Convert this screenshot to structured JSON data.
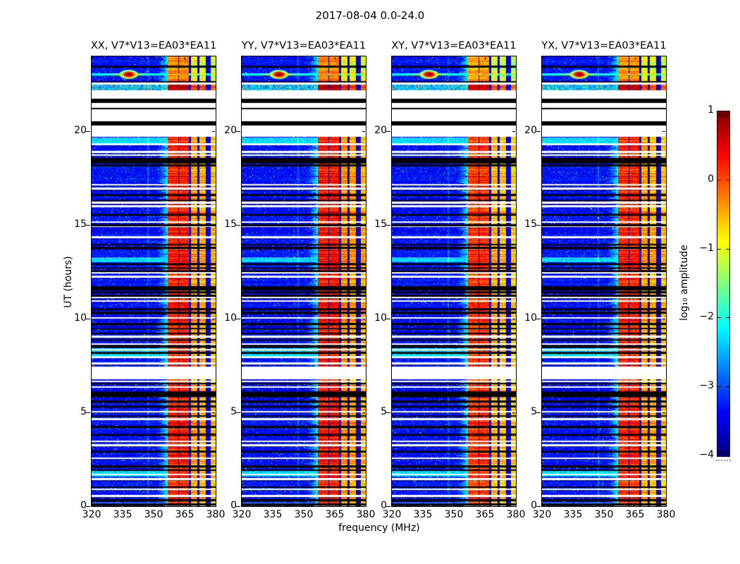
{
  "figure": {
    "title": "2017-08-04 0.0-24.0"
  },
  "chart_data": {
    "type": "heatmap",
    "title": "2017-08-04 0.0-24.0",
    "xlabel": "frequency (MHz)",
    "ylabel": "UT (hours)",
    "x_range": [
      320,
      380
    ],
    "y_range": [
      0,
      24
    ],
    "x_ticks": [
      320,
      335,
      350,
      365,
      380
    ],
    "y_ticks": [
      0,
      5,
      10,
      15,
      20
    ],
    "grid": false,
    "panels": [
      {
        "title": "XX, V7*V13=EA03*EA11",
        "pol": "XX",
        "band_bias": 0.0,
        "seed": 101
      },
      {
        "title": "YY, V7*V13=EA03*EA11",
        "pol": "YY",
        "band_bias": 0.06,
        "seed": 211
      },
      {
        "title": "XY, V7*V13=EA03*EA11",
        "pol": "XY",
        "band_bias": -0.12,
        "seed": 317
      },
      {
        "title": "YX, V7*V13=EA03*EA11",
        "pol": "YX",
        "band_bias": -0.03,
        "seed": 431
      }
    ],
    "colorbar": {
      "label": "log₁₀ amplitude",
      "min": -4,
      "max": 1,
      "tick_labels": [
        "1",
        "0",
        "−1",
        "−2",
        "−3",
        "−4"
      ],
      "tick_values": [
        1,
        0,
        -1,
        -2,
        -3,
        -4
      ],
      "colormap": "jet",
      "position": "right"
    },
    "features": {
      "background_level": -3.35,
      "noise_sigma": 0.3,
      "white_gaps": [
        [
          19.7,
          22.18
        ],
        [
          6.78,
          7.46
        ]
      ],
      "thick_black_lines": [
        21.62,
        20.42,
        18.38,
        11.62,
        5.95
      ],
      "black_lines": [
        23.45,
        22.65,
        21.22,
        18.52,
        18.2,
        16.6,
        16.32,
        15.55,
        15.0,
        13.95,
        13.78,
        12.92,
        12.72,
        12.55,
        11.42,
        11.22,
        10.52,
        10.32,
        9.72,
        9.48,
        9.22,
        8.88,
        8.52,
        8.18,
        6.55,
        6.08,
        5.58,
        5.32,
        4.82,
        4.22,
        3.82,
        2.92,
        2.12,
        1.92,
        1.02,
        0.32,
        0.1
      ],
      "white_lines": [
        22.55,
        19.32,
        18.9,
        18.74,
        17.15,
        16.95,
        16.2,
        16.0,
        15.15,
        14.95,
        14.35,
        12.45,
        12.25,
        11.15,
        10.95,
        10.05,
        9.05,
        8.65,
        8.35,
        7.95,
        7.62,
        6.65,
        6.35,
        5.05,
        4.65,
        3.45,
        3.25,
        2.55,
        1.7,
        1.45,
        0.9,
        0.55
      ],
      "cyan_rows": [
        [
          19.38,
          19.66
        ],
        [
          13.02,
          13.28
        ],
        [
          8.02,
          8.42
        ],
        [
          1.58,
          1.88
        ],
        [
          0.02,
          0.2
        ]
      ],
      "speckle_row": [
        22.2,
        22.5
      ],
      "rfi_stripes": [
        [
          356.8,
          361.9,
          0.18
        ],
        [
          362.4,
          366.9,
          0.22
        ],
        [
          367.9,
          371.3,
          -0.42
        ],
        [
          372.2,
          375.3,
          -0.5
        ],
        [
          377.5,
          379.9,
          -0.6
        ]
      ],
      "rfi_gap_level": -3.7,
      "rfi_top_block_bias": -0.55,
      "shoulder_range": [
        350.5,
        356.8
      ],
      "vertical_artifact_freq": 347.3,
      "sun_blob": {
        "t": 23.04,
        "f": 338,
        "sigma_f": 1.6,
        "sigma_t": 0.085,
        "peak": 1.0
      },
      "streak": {
        "t": 23.04,
        "halfwidth": 0.06,
        "base": -2.15,
        "bump": 1.2,
        "sigma_f": 7
      }
    }
  }
}
